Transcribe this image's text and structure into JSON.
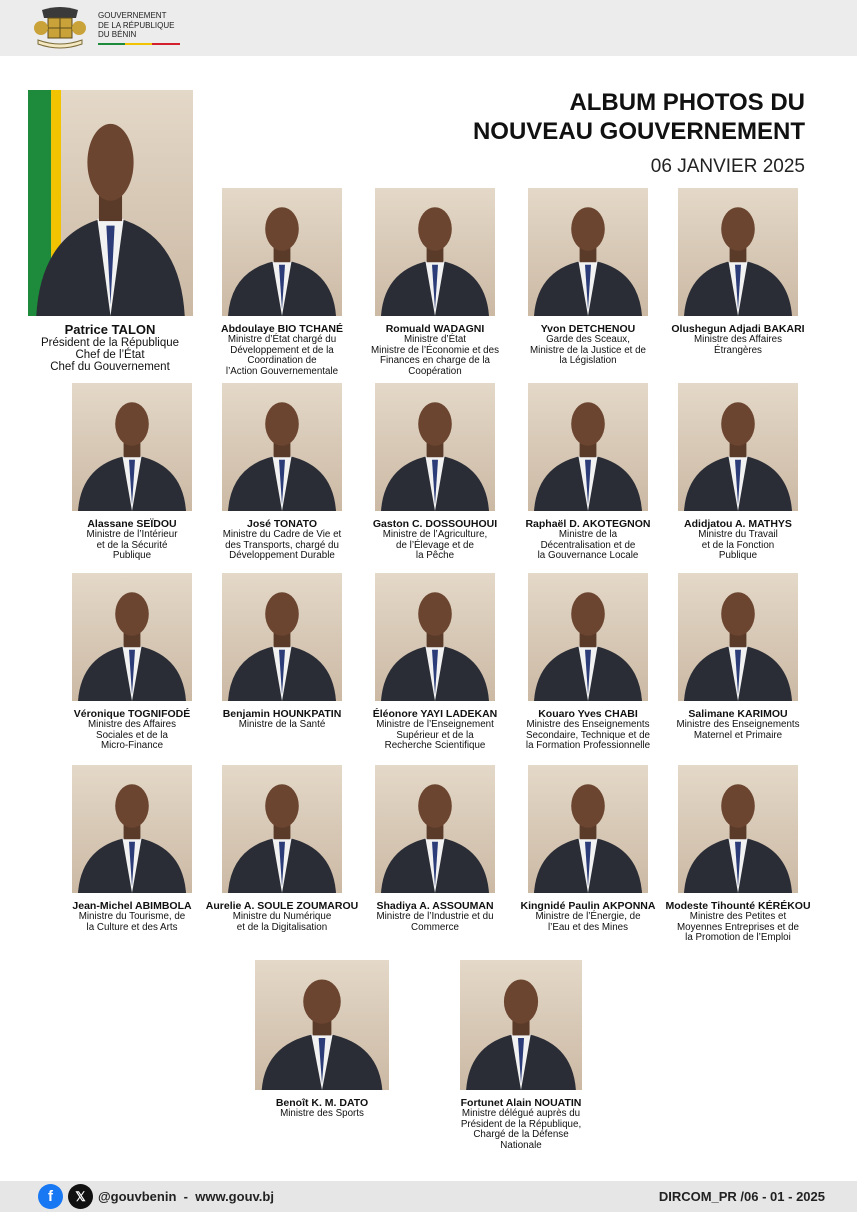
{
  "header": {
    "org": [
      "GOUVERNEMENT",
      "DE LA RÉPUBLIQUE",
      "DU BÉNIN"
    ]
  },
  "title": {
    "lines": [
      "ALBUM PHOTOS DU",
      "NOUVEAU GOUVERNEMENT"
    ],
    "date": "06 JANVIER 2025"
  },
  "president": {
    "name": "Patrice TALON",
    "roles": [
      "Président de la République",
      "Chef  de l’État",
      "Chef du Gouvernement"
    ]
  },
  "members": [
    {
      "name": "Abdoulaye BIO TCHANÉ",
      "roles": [
        "Ministre d’État chargé du",
        "Développement et de la",
        "Coordination de",
        "l’Action Gouvernementale"
      ]
    },
    {
      "name": "Romuald WADAGNI",
      "roles": [
        "Ministre d’État",
        "Ministre de l’Économie et des",
        "Finances en charge de la",
        "Coopération"
      ]
    },
    {
      "name": "Yvon DETCHENOU",
      "roles": [
        "Garde des Sceaux,",
        "Ministre de la Justice et de",
        "la Législation"
      ]
    },
    {
      "name": "Olushegun Adjadi BAKARI",
      "roles": [
        "Ministre des Affaires",
        "Étrangères"
      ]
    },
    {
      "name": "Alassane SEÏDOU",
      "roles": [
        "Ministre de l’Intérieur",
        "et de la Sécurité",
        "Publique"
      ]
    },
    {
      "name": "José TONATO",
      "roles": [
        "Ministre du Cadre de Vie et",
        "des Transports, chargé du",
        "Développement Durable"
      ]
    },
    {
      "name": "Gaston C. DOSSOUHOUI",
      "roles": [
        "Ministre de l’Agriculture,",
        "de l’Élevage et de",
        "la Pêche"
      ]
    },
    {
      "name": "Raphaël D. AKOTEGNON",
      "roles": [
        "Ministre de la",
        "Décentralisation et de",
        "la Gouvernance Locale"
      ]
    },
    {
      "name": "Adidjatou A. MATHYS",
      "roles": [
        "Ministre du Travail",
        "et de la Fonction",
        "Publique"
      ]
    },
    {
      "name": "Véronique TOGNIFODÉ",
      "roles": [
        "Ministre des Affaires",
        "Sociales et de la",
        "Micro-Finance"
      ]
    },
    {
      "name": "Benjamin HOUNKPATIN",
      "roles": [
        "Ministre de la Santé"
      ]
    },
    {
      "name": "Éléonore YAYI LADEKAN",
      "roles": [
        "Ministre de l’Enseignement",
        "Supérieur et de la",
        "Recherche Scientifique"
      ]
    },
    {
      "name": "Kouaro Yves CHABI",
      "roles": [
        "Ministre des Enseignements",
        "Secondaire, Technique et de",
        "la Formation Professionnelle"
      ]
    },
    {
      "name": "Salimane KARIMOU",
      "roles": [
        "Ministre des Enseignements",
        "Maternel et Primaire"
      ]
    },
    {
      "name": "Jean-Michel ABIMBOLA",
      "roles": [
        "Ministre du Tourisme, de",
        "la Culture et des Arts"
      ]
    },
    {
      "name": "Aurelie A. SOULE ZOUMAROU",
      "roles": [
        "Ministre du Numérique",
        "et de la Digitalisation"
      ]
    },
    {
      "name": "Shadiya A. ASSOUMAN",
      "roles": [
        "Ministre de l’Industrie et du",
        "Commerce"
      ]
    },
    {
      "name": "Kingnidé Paulin AKPONNA",
      "roles": [
        "Ministre de l’Énergie, de",
        "l’Eau et des Mines"
      ]
    },
    {
      "name": "Modeste Tihounté KÉRÉKOU",
      "roles": [
        "Ministre des Petites et",
        "Moyennes Entreprises et de",
        "la Promotion de l’Emploi"
      ]
    },
    {
      "name": "Benoît K. M. DATO",
      "roles": [
        "Ministre des Sports"
      ]
    },
    {
      "name": "Fortunet Alain NOUATIN",
      "roles": [
        "Ministre délégué auprès du",
        "Président de la République,",
        "Chargé de la Défense",
        "Nationale"
      ]
    }
  ],
  "footer": {
    "handle": "@gouvbenin",
    "separator": "-",
    "website": "www.gouv.bj",
    "reference": "DIRCOM_PR /06 - 01 - 2025"
  }
}
